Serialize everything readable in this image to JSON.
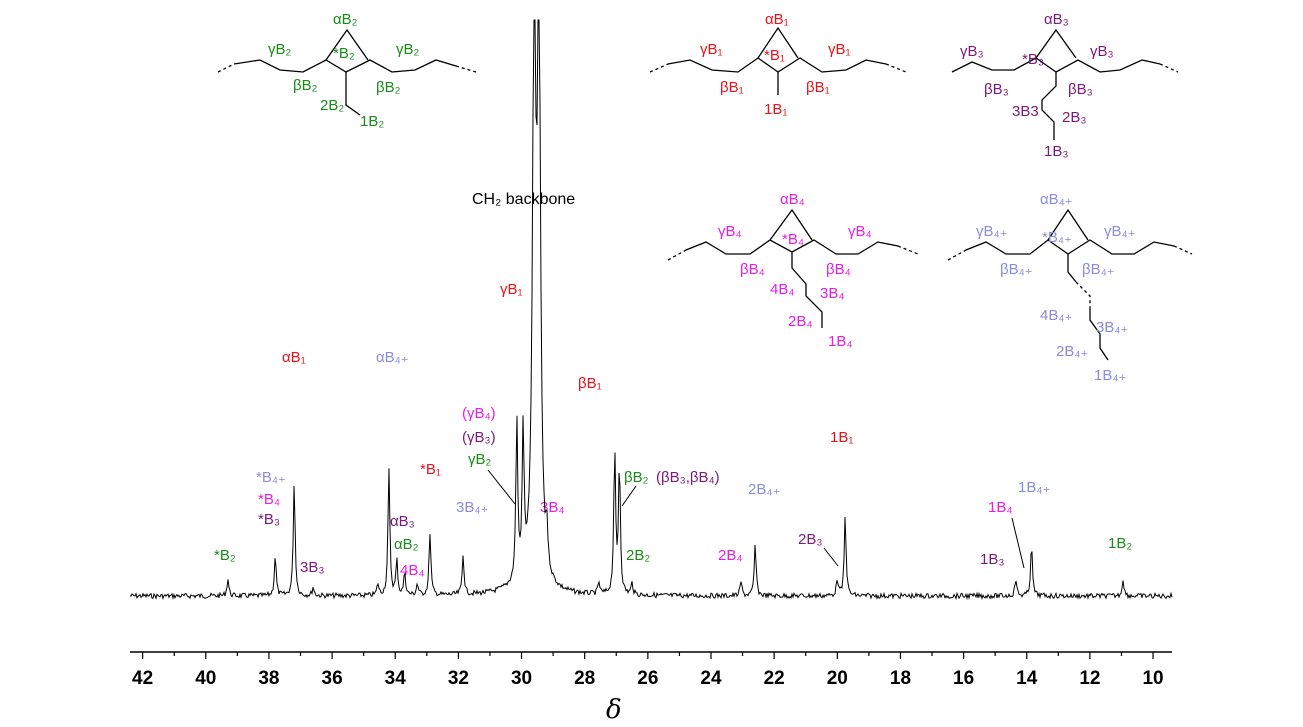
{
  "colors": {
    "black": "#000000",
    "red": "#e8141c",
    "green": "#1a8a1a",
    "purple": "#7a1a7a",
    "magenta": "#e61ee6",
    "lavender": "#8c8cdc"
  },
  "chart_data": {
    "type": "line",
    "title": "",
    "xlabel": "δ",
    "ylabel": "",
    "xlim": [
      42.4,
      9.4
    ],
    "x_reversed": true,
    "grid": false,
    "xticks": [
      "42",
      "40",
      "38",
      "36",
      "34",
      "32",
      "30",
      "28",
      "26",
      "24",
      "22",
      "20",
      "18",
      "16",
      "14",
      "12",
      "10"
    ],
    "series": [
      {
        "peaks": [
          {
            "x": 39.3,
            "height": 0.03
          },
          {
            "x": 37.8,
            "height": 0.07
          },
          {
            "x": 37.2,
            "height": 0.2
          },
          {
            "x": 36.6,
            "height": 0.015
          },
          {
            "x": 34.55,
            "height": 0.02
          },
          {
            "x": 34.2,
            "height": 0.22
          },
          {
            "x": 33.95,
            "height": 0.06
          },
          {
            "x": 33.7,
            "height": 0.04
          },
          {
            "x": 33.3,
            "height": 0.02
          },
          {
            "x": 32.9,
            "height": 0.11
          },
          {
            "x": 31.85,
            "height": 0.07
          },
          {
            "x": 30.15,
            "height": 0.28
          },
          {
            "x": 29.95,
            "height": 0.25
          },
          {
            "x": 29.6,
            "height": 1.0
          },
          {
            "x": 29.45,
            "height": 1.0
          },
          {
            "x": 29.2,
            "height": 0.07
          },
          {
            "x": 27.55,
            "height": 0.02
          },
          {
            "x": 27.05,
            "height": 0.25
          },
          {
            "x": 26.9,
            "height": 0.23
          },
          {
            "x": 26.5,
            "height": 0.02
          },
          {
            "x": 23.05,
            "height": 0.025
          },
          {
            "x": 22.6,
            "height": 0.09
          },
          {
            "x": 20.0,
            "height": 0.03
          },
          {
            "x": 19.75,
            "height": 0.14
          },
          {
            "x": 14.35,
            "height": 0.03
          },
          {
            "x": 13.85,
            "height": 0.09
          },
          {
            "x": 10.95,
            "height": 0.03
          }
        ]
      }
    ],
    "annotations": {
      "backbone": "CH₂ backbone",
      "peak_labels": [
        {
          "id": "p-aB1",
          "text": "αB₁",
          "color": "red"
        },
        {
          "id": "p-aB4p",
          "text": "αB₄₊",
          "color": "lavender"
        },
        {
          "id": "p-gB1",
          "text": "γB₁",
          "color": "red"
        },
        {
          "id": "p-bB1",
          "text": "βB₁",
          "color": "red"
        },
        {
          "id": "p-1B1",
          "text": "1B₁",
          "color": "red"
        },
        {
          "id": "p-sB4p",
          "text": "*B₄₊",
          "color": "lavender"
        },
        {
          "id": "p-sB4",
          "text": "*B₄",
          "color": "magenta"
        },
        {
          "id": "p-sB3",
          "text": "*B₃",
          "color": "purple"
        },
        {
          "id": "p-sB2",
          "text": "*B₂",
          "color": "green"
        },
        {
          "id": "p-3B3",
          "text": "3B₃",
          "color": "purple"
        },
        {
          "id": "p-aB3",
          "text": "αB₃",
          "color": "purple"
        },
        {
          "id": "p-aB2",
          "text": "αB₂",
          "color": "green"
        },
        {
          "id": "p-4B4",
          "text": "4B₄",
          "color": "magenta"
        },
        {
          "id": "p-sB1",
          "text": "*B₁",
          "color": "red"
        },
        {
          "id": "p-3B4p",
          "text": "3B₄₊",
          "color": "lavender"
        },
        {
          "id": "p-gB4",
          "text": "(γB₄)",
          "color": "magenta"
        },
        {
          "id": "p-gB3",
          "text": "(γB₃)",
          "color": "purple"
        },
        {
          "id": "p-gB2",
          "text": "γB₂",
          "color": "green"
        },
        {
          "id": "p-3B4",
          "text": "3B₄",
          "color": "magenta"
        },
        {
          "id": "p-bB2",
          "text": "βB₂",
          "color": "green"
        },
        {
          "id": "p-bB34",
          "text": "(βB₃,βB₄)",
          "color": "purple"
        },
        {
          "id": "p-2B2",
          "text": "2B₂",
          "color": "green"
        },
        {
          "id": "p-2B4p",
          "text": "2B₄₊",
          "color": "lavender"
        },
        {
          "id": "p-2B4",
          "text": "2B₄",
          "color": "magenta"
        },
        {
          "id": "p-2B3",
          "text": "2B₃",
          "color": "purple"
        },
        {
          "id": "p-1B3",
          "text": "1B₃",
          "color": "purple"
        },
        {
          "id": "p-1B4",
          "text": "1B₄",
          "color": "magenta"
        },
        {
          "id": "p-1B4p",
          "text": "1B₄₊",
          "color": "lavender"
        },
        {
          "id": "p-1B2",
          "text": "1B₂",
          "color": "green"
        }
      ]
    }
  },
  "structures": {
    "B2": [
      "αB₂",
      "*B₂",
      "γB₂",
      "γB₂",
      "βB₂",
      "βB₂",
      "2B₂",
      "1B₂"
    ],
    "B1": [
      "αB₁",
      "*B₁",
      "γB₁",
      "γB₁",
      "βB₁",
      "βB₁",
      "1B₁"
    ],
    "B3": [
      "αB₃",
      "*B₃",
      "γB₃",
      "γB₃",
      "βB₃",
      "βB₃",
      "3B3",
      "2B₃",
      "1B₃"
    ],
    "B4": [
      "αB₄",
      "*B₄",
      "γB₄",
      "γB₄",
      "βB₄",
      "βB₄",
      "4B₄",
      "3B₄",
      "2B₄",
      "1B₄"
    ],
    "B4p": [
      "αB₄₊",
      "*B₄₊",
      "γB₄₊",
      "γB₄₊",
      "βB₄₊",
      "βB₄₊",
      "4B₄₊",
      "3B₄₊",
      "2B₄₊",
      "1B₄₊"
    ]
  }
}
